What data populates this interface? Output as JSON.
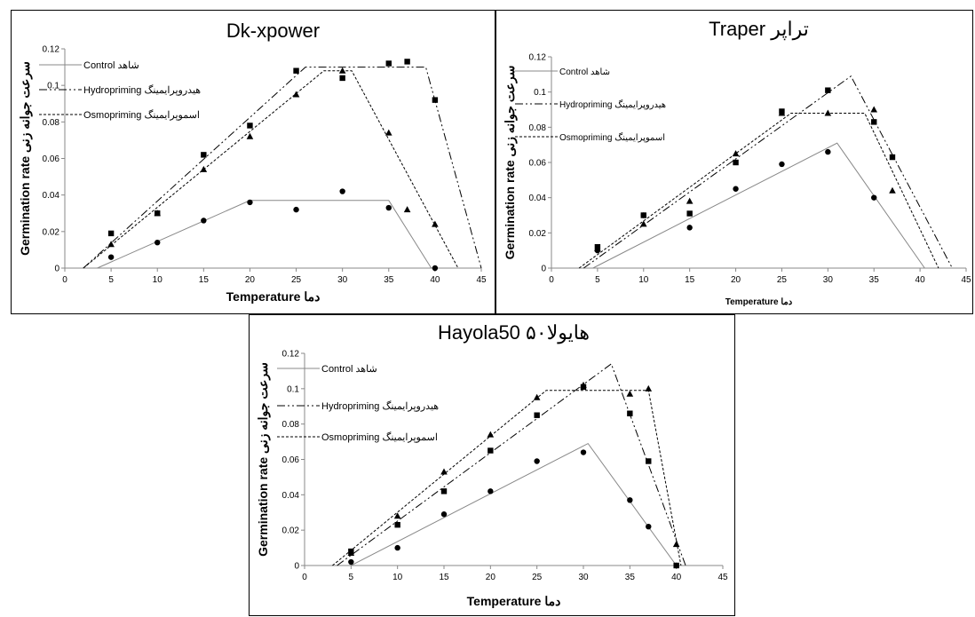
{
  "chart_data": [
    {
      "type": "scatter",
      "title": "Dk-xpower",
      "xlabel": "Temperature دما",
      "ylabel": "Germination rate سرعت جوانه زنی",
      "xlim": [
        0,
        45
      ],
      "ylim": [
        0,
        0.12
      ],
      "x_ticks": [
        "0",
        "5",
        "10",
        "15",
        "20",
        "25",
        "30",
        "35",
        "40",
        "45"
      ],
      "y_ticks": [
        "0",
        "0.02",
        "0.04",
        "0.06",
        "0.08",
        "0.1",
        "0.12"
      ],
      "legend_position": "top-left",
      "series": [
        {
          "name": "Control شاهد",
          "marker": "circle",
          "line": "solid",
          "points": [
            [
              5,
              0.006
            ],
            [
              10,
              0.014
            ],
            [
              15,
              0.026
            ],
            [
              20,
              0.036
            ],
            [
              25,
              0.032
            ],
            [
              30,
              0.042
            ],
            [
              35,
              0.033
            ],
            [
              40,
              0.0
            ]
          ],
          "fit": [
            [
              3.5,
              0
            ],
            [
              20,
              0.037
            ],
            [
              35,
              0.037
            ],
            [
              39.6,
              0
            ]
          ]
        },
        {
          "name": "Hydropriming هیدروپرایمینگ",
          "marker": "square",
          "line": "dash-dot-dot",
          "points": [
            [
              5,
              0.019
            ],
            [
              10,
              0.03
            ],
            [
              15,
              0.062
            ],
            [
              20,
              0.078
            ],
            [
              25,
              0.108
            ],
            [
              30,
              0.104
            ],
            [
              35,
              0.112
            ],
            [
              37,
              0.113
            ],
            [
              40,
              0.092
            ]
          ],
          "fit": [
            [
              2,
              0
            ],
            [
              26,
              0.11
            ],
            [
              39,
              0.11
            ],
            [
              45,
              0
            ]
          ]
        },
        {
          "name": "Osmopriming اسموپرایمینگ",
          "marker": "triangle",
          "line": "dashed",
          "points": [
            [
              5,
              0.013
            ],
            [
              10,
              0.03
            ],
            [
              15,
              0.054
            ],
            [
              20,
              0.072
            ],
            [
              25,
              0.095
            ],
            [
              30,
              0.108
            ],
            [
              35,
              0.074
            ],
            [
              37,
              0.032
            ],
            [
              40,
              0.024
            ]
          ],
          "fit": [
            [
              2,
              0
            ],
            [
              28,
              0.108
            ],
            [
              31,
              0.108
            ],
            [
              42.5,
              0
            ]
          ]
        }
      ]
    },
    {
      "type": "scatter",
      "title": "Traper تراپر",
      "xlabel": "Temperature دما",
      "ylabel": "Germination rate سرعت جوانه زنی",
      "xlim": [
        0,
        45
      ],
      "ylim": [
        0,
        0.12
      ],
      "x_ticks": [
        "0",
        "5",
        "10",
        "15",
        "20",
        "25",
        "30",
        "35",
        "40",
        "45"
      ],
      "y_ticks": [
        "0",
        "0.02",
        "0.04",
        "0.06",
        "0.08",
        "0.1",
        "0.12"
      ],
      "legend_position": "top-left",
      "series": [
        {
          "name": "Control شاهد",
          "marker": "circle",
          "line": "solid",
          "points": [
            [
              5,
              0.01
            ],
            [
              10,
              0.03
            ],
            [
              15,
              0.023
            ],
            [
              20,
              0.045
            ],
            [
              25,
              0.059
            ],
            [
              30,
              0.066
            ],
            [
              35,
              0.04
            ]
          ],
          "fit": [
            [
              4.5,
              0
            ],
            [
              31,
              0.071
            ],
            [
              40.5,
              0
            ]
          ]
        },
        {
          "name": "Hydropriming هیدروپرایمینگ",
          "marker": "square",
          "line": "dash-dot-dot",
          "points": [
            [
              5,
              0.012
            ],
            [
              10,
              0.03
            ],
            [
              15,
              0.031
            ],
            [
              20,
              0.06
            ],
            [
              25,
              0.089
            ],
            [
              30,
              0.101
            ],
            [
              35,
              0.083
            ],
            [
              37,
              0.063
            ]
          ],
          "fit": [
            [
              3.5,
              0
            ],
            [
              32.5,
              0.109
            ],
            [
              43.5,
              0
            ]
          ]
        },
        {
          "name": "Osmopriming اسموپرایمینگ",
          "marker": "triangle",
          "line": "dashed",
          "points": [
            [
              5,
              0.011
            ],
            [
              10,
              0.025
            ],
            [
              15,
              0.038
            ],
            [
              20,
              0.065
            ],
            [
              25,
              0.088
            ],
            [
              30,
              0.088
            ],
            [
              35,
              0.09
            ],
            [
              37,
              0.044
            ]
          ],
          "fit": [
            [
              3,
              0
            ],
            [
              26,
              0.088
            ],
            [
              34,
              0.088
            ],
            [
              42,
              0
            ]
          ]
        }
      ]
    },
    {
      "type": "scatter",
      "title": "Hayola50 هایولا۵۰",
      "xlabel": "Temperature دما",
      "ylabel": "Germination rate سرعت جوانه زنی",
      "xlim": [
        0,
        45
      ],
      "ylim": [
        0,
        0.12
      ],
      "x_ticks": [
        "0",
        "5",
        "10",
        "15",
        "20",
        "25",
        "30",
        "35",
        "40",
        "45"
      ],
      "y_ticks": [
        "0",
        "0.02",
        "0.04",
        "0.06",
        "0.08",
        "0.1",
        "0.12"
      ],
      "legend_position": "top-left",
      "series": [
        {
          "name": "Control شاهد",
          "marker": "circle",
          "line": "solid",
          "points": [
            [
              5,
              0.002
            ],
            [
              10,
              0.01
            ],
            [
              15,
              0.029
            ],
            [
              20,
              0.042
            ],
            [
              25,
              0.059
            ],
            [
              30,
              0.064
            ],
            [
              35,
              0.037
            ],
            [
              37,
              0.022
            ],
            [
              40,
              0.0
            ]
          ],
          "fit": [
            [
              5,
              0
            ],
            [
              30.5,
              0.069
            ],
            [
              40,
              0
            ]
          ]
        },
        {
          "name": "Hydropriming هیدروپرایمینگ",
          "marker": "square",
          "line": "dash-dot-dot",
          "points": [
            [
              5,
              0.008
            ],
            [
              10,
              0.023
            ],
            [
              15,
              0.042
            ],
            [
              20,
              0.065
            ],
            [
              25,
              0.085
            ],
            [
              30,
              0.101
            ],
            [
              35,
              0.086
            ],
            [
              37,
              0.059
            ],
            [
              40,
              0.0
            ]
          ],
          "fit": [
            [
              3.5,
              0
            ],
            [
              33,
              0.114
            ],
            [
              41,
              0
            ]
          ]
        },
        {
          "name": "Osmopriming اسموپرایمینگ",
          "marker": "triangle",
          "line": "dashed",
          "points": [
            [
              5,
              0.007
            ],
            [
              10,
              0.028
            ],
            [
              15,
              0.053
            ],
            [
              20,
              0.074
            ],
            [
              25,
              0.095
            ],
            [
              30,
              0.102
            ],
            [
              35,
              0.097
            ],
            [
              37,
              0.1
            ],
            [
              40,
              0.012
            ]
          ],
          "fit": [
            [
              3,
              0
            ],
            [
              26,
              0.099
            ],
            [
              37,
              0.099
            ],
            [
              40.5,
              0
            ]
          ]
        }
      ]
    }
  ]
}
